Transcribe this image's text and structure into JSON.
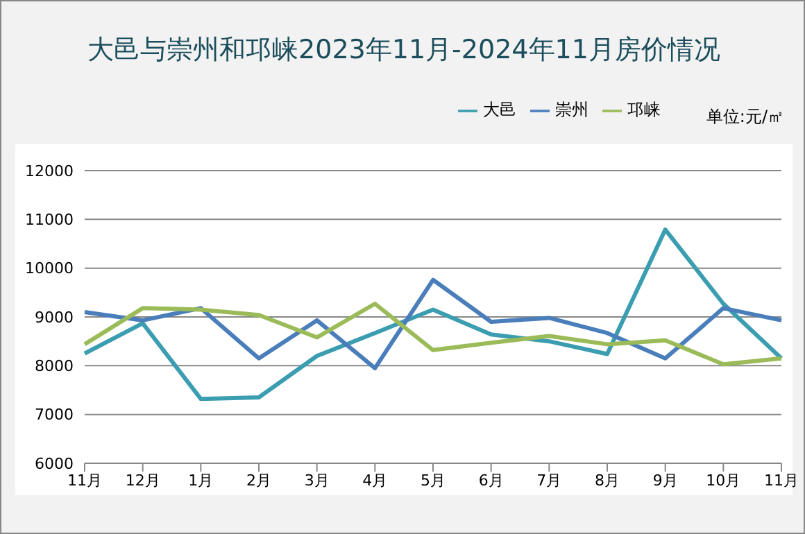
{
  "chart_data": {
    "type": "line",
    "title": "大邑与崇州和邛崃2023年11月-2024年11月房价情况",
    "categories": [
      "11月",
      "12月",
      "1月",
      "2月",
      "3月",
      "4月",
      "5月",
      "6月",
      "7月",
      "8月",
      "9月",
      "10月",
      "11月"
    ],
    "series": [
      {
        "name": "大邑",
        "color": "#3a9db0",
        "values": [
          8250,
          8870,
          7320,
          7350,
          8200,
          8670,
          9150,
          8640,
          8500,
          8240,
          10790,
          9270,
          8150
        ]
      },
      {
        "name": "崇州",
        "color": "#4a7ebb",
        "values": [
          9100,
          8930,
          9180,
          8150,
          8930,
          7950,
          9760,
          8900,
          8980,
          8670,
          8150,
          9180,
          8930
        ]
      },
      {
        "name": "邛崃",
        "color": "#9bbb59",
        "values": [
          8440,
          9180,
          9150,
          9040,
          8580,
          9270,
          8320,
          8470,
          8610,
          8440,
          8520,
          8030,
          8150
        ]
      }
    ],
    "ylim": [
      6000,
      12000
    ],
    "yticks": [
      6000,
      7000,
      8000,
      9000,
      10000,
      11000,
      12000
    ],
    "grid": "y",
    "legend": "top right",
    "marker": "none",
    "line_style": "solid",
    "annotations": [
      "单位:元/㎡"
    ]
  }
}
